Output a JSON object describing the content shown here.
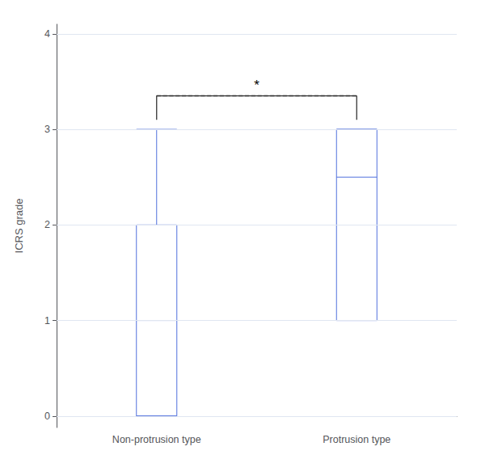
{
  "chart_data": {
    "type": "box",
    "categories": [
      "Non-protrusion type",
      "Protrusion type"
    ],
    "boxes": [
      {
        "q1": 0,
        "median": 1,
        "q3": 2,
        "whisker_low": 0,
        "whisker_high": 3
      },
      {
        "q1": 1,
        "median": 2.5,
        "q3": 3,
        "whisker_low": 1,
        "whisker_high": 3
      }
    ],
    "ylabel": "ICRS grade",
    "ylim": [
      -0.12,
      4.1
    ],
    "yticks": [
      0,
      1,
      2,
      3,
      4
    ],
    "grid": true,
    "annotations": [
      {
        "text": "*",
        "x": [
          "Non-protrusion type",
          "Protrusion type"
        ],
        "y": 3.35,
        "y_bottom": 3.1
      }
    ]
  }
}
